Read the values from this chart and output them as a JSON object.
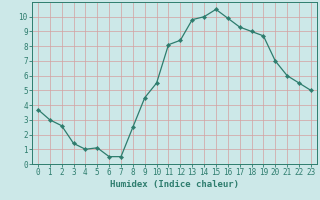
{
  "x": [
    0,
    1,
    2,
    3,
    4,
    5,
    6,
    7,
    8,
    9,
    10,
    11,
    12,
    13,
    14,
    15,
    16,
    17,
    18,
    19,
    20,
    21,
    22,
    23
  ],
  "y": [
    3.7,
    3.0,
    2.6,
    1.4,
    1.0,
    1.1,
    0.5,
    0.5,
    2.5,
    4.5,
    5.5,
    8.1,
    8.4,
    9.8,
    10.0,
    10.5,
    9.9,
    9.3,
    9.0,
    8.7,
    7.0,
    6.0,
    5.5,
    5.0
  ],
  "line_color": "#2e7d6e",
  "marker": "D",
  "marker_size": 2.2,
  "bg_color": "#cce8e8",
  "grid_color": "#b8d4d4",
  "xlabel": "Humidex (Indice chaleur)",
  "xlim": [
    -0.5,
    23.5
  ],
  "ylim": [
    0,
    11
  ],
  "xticks": [
    0,
    1,
    2,
    3,
    4,
    5,
    6,
    7,
    8,
    9,
    10,
    11,
    12,
    13,
    14,
    15,
    16,
    17,
    18,
    19,
    20,
    21,
    22,
    23
  ],
  "yticks": [
    0,
    1,
    2,
    3,
    4,
    5,
    6,
    7,
    8,
    9,
    10
  ],
  "tick_color": "#2e7d6e",
  "axis_color": "#2e7d6e",
  "label_fontsize": 6.5,
  "tick_fontsize": 5.5
}
